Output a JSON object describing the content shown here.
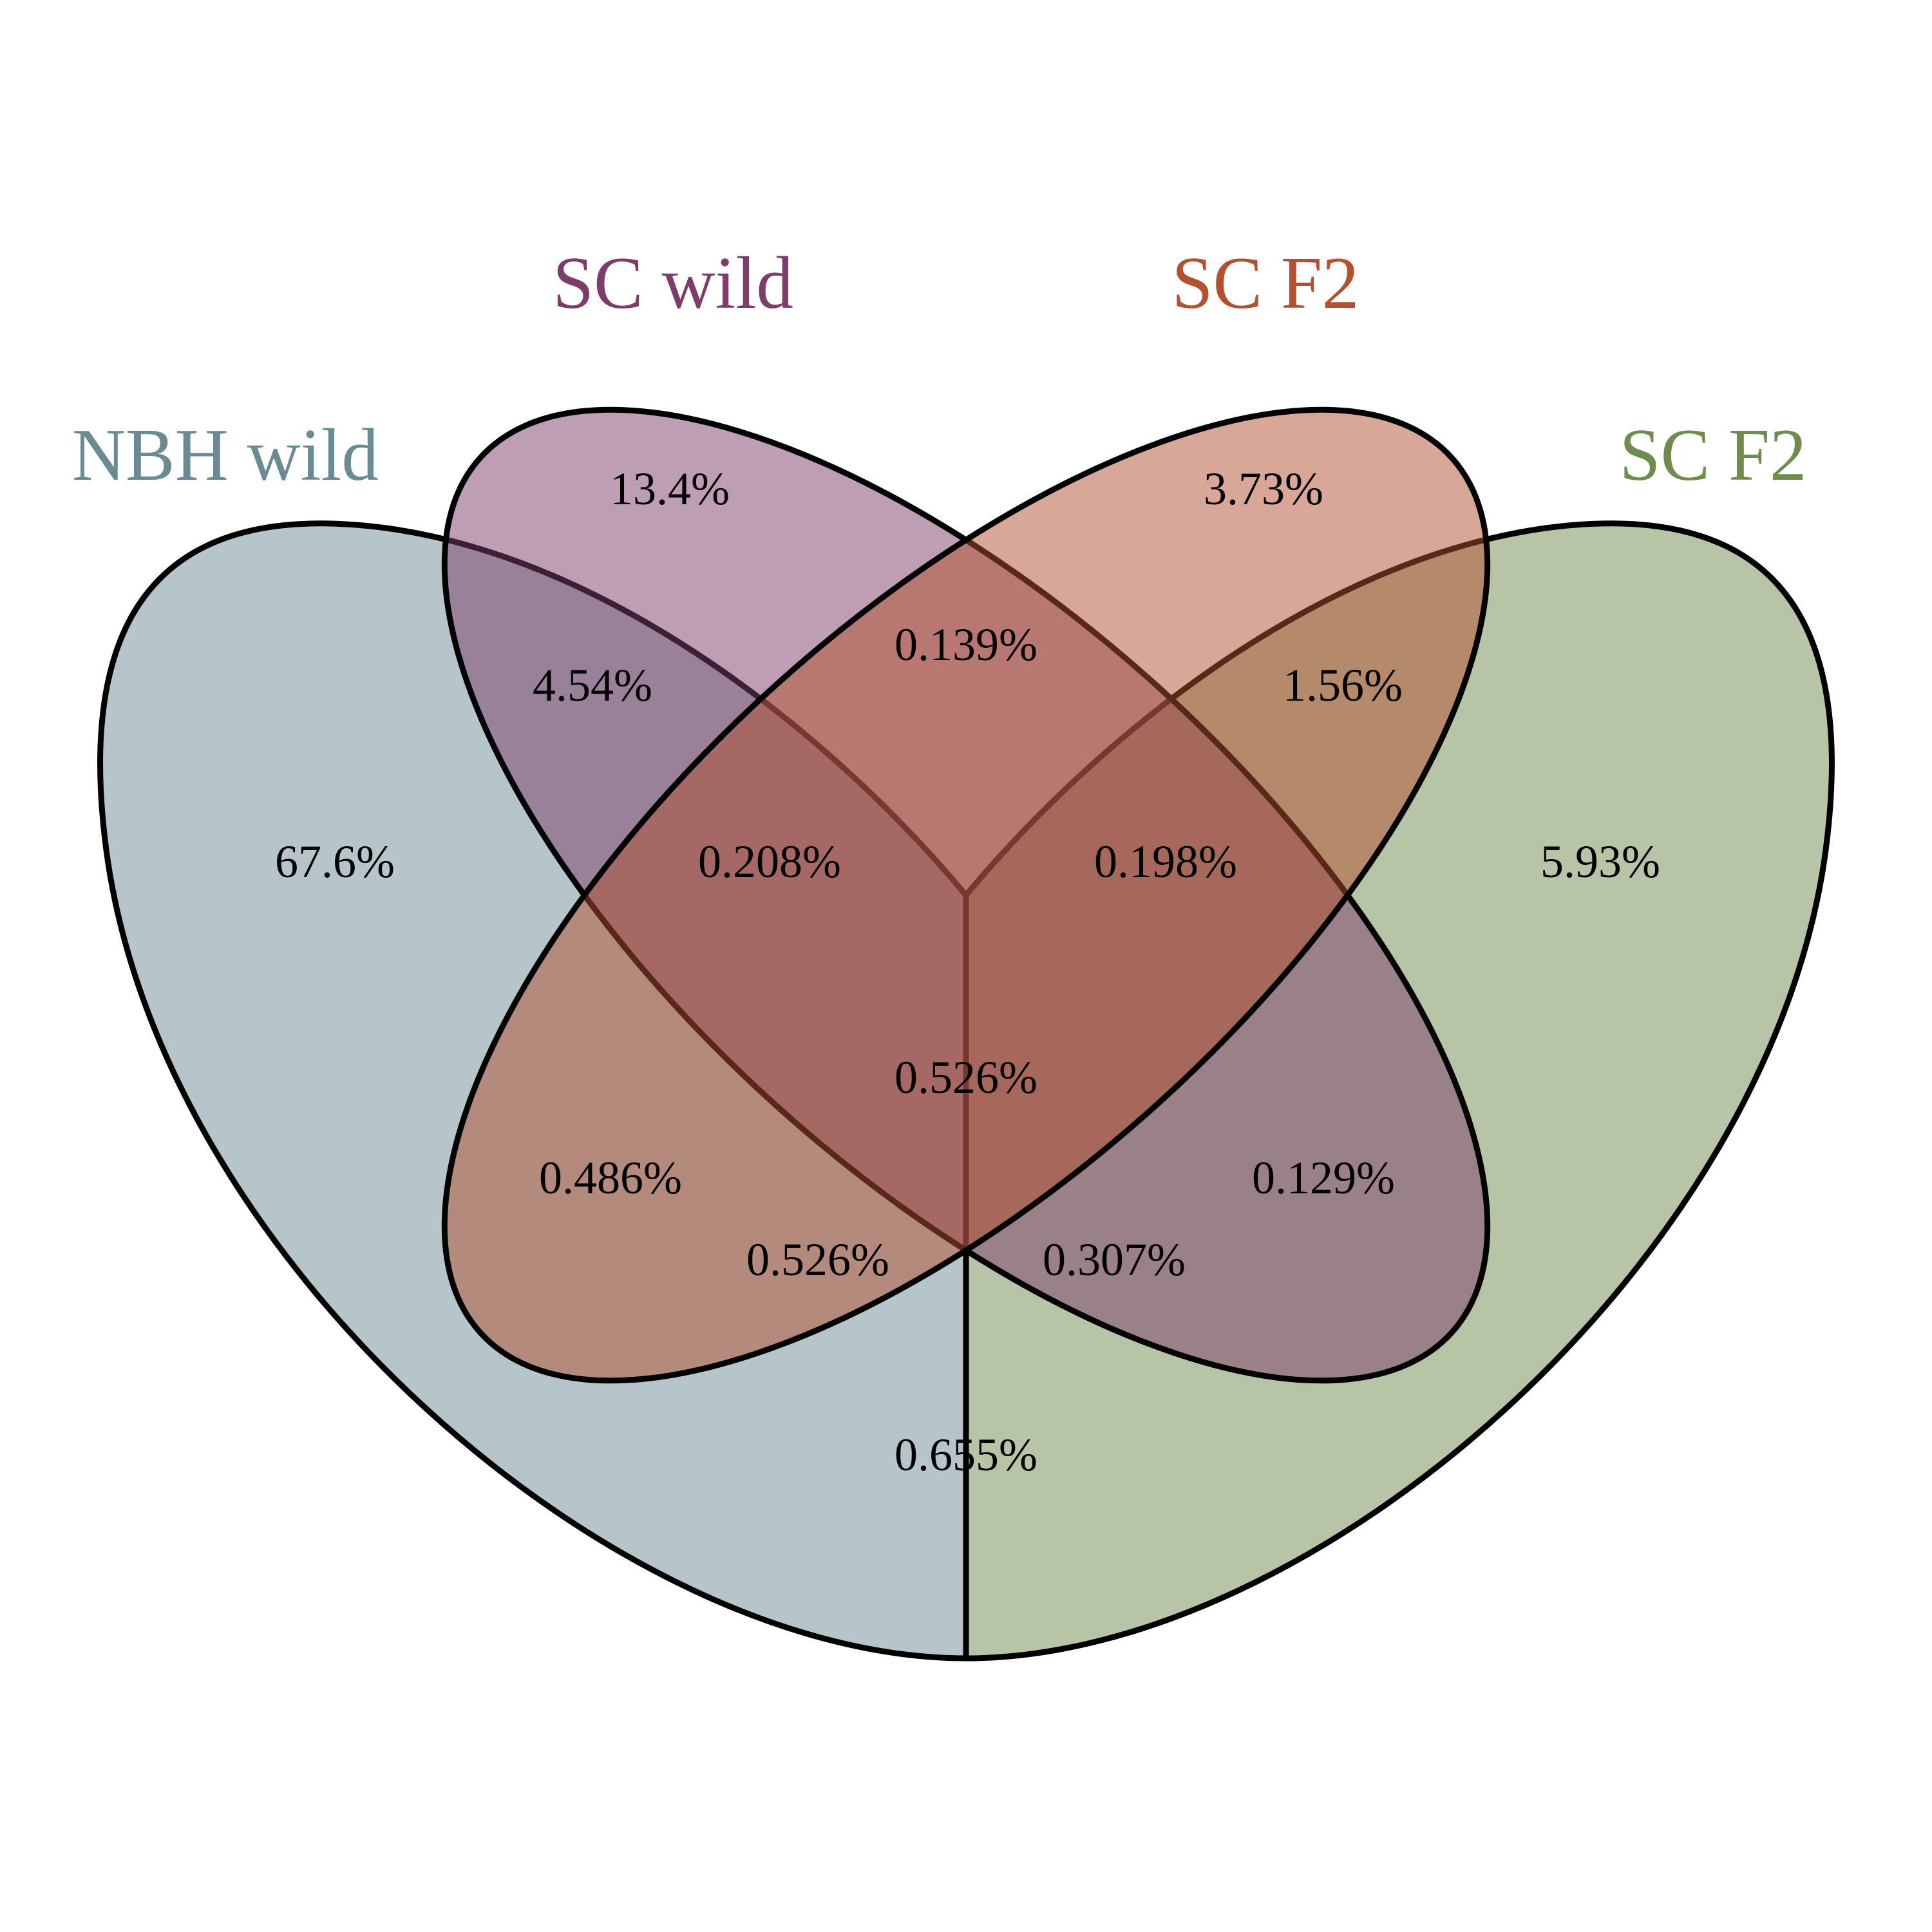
{
  "sets": [
    {
      "key": "nbh_wild",
      "label": "NBH wild",
      "color": "#6b8b93"
    },
    {
      "key": "sc_wild",
      "label": "SC wild",
      "color": "#7e3d69"
    },
    {
      "key": "sc_f2_a",
      "label": "SC F2",
      "color": "#b3502f"
    },
    {
      "key": "sc_f2_b",
      "label": "SC F2",
      "color": "#6f8c4d"
    }
  ],
  "regions": [
    {
      "sets": [
        "sc_wild"
      ],
      "value": "13.4%"
    },
    {
      "sets": [
        "sc_f2_a"
      ],
      "value": "3.73%"
    },
    {
      "sets": [
        "sc_wild",
        "sc_f2_a"
      ],
      "value": "0.139%"
    },
    {
      "sets": [
        "nbh_wild",
        "sc_wild"
      ],
      "value": "4.54%"
    },
    {
      "sets": [
        "sc_f2_a",
        "sc_f2_b"
      ],
      "value": "1.56%"
    },
    {
      "sets": [
        "nbh_wild"
      ],
      "value": "67.6%"
    },
    {
      "sets": [
        "nbh_wild",
        "sc_wild",
        "sc_f2_a"
      ],
      "value": "0.208%"
    },
    {
      "sets": [
        "sc_wild",
        "sc_f2_a",
        "sc_f2_b"
      ],
      "value": "0.198%"
    },
    {
      "sets": [
        "sc_f2_b"
      ],
      "value": "5.93%"
    },
    {
      "sets": [
        "nbh_wild",
        "sc_wild",
        "sc_f2_a",
        "sc_f2_b"
      ],
      "value": "0.526%"
    },
    {
      "sets": [
        "nbh_wild",
        "sc_f2_a"
      ],
      "value": "0.486%"
    },
    {
      "sets": [
        "sc_wild",
        "sc_f2_b"
      ],
      "value": "0.129%"
    },
    {
      "sets": [
        "nbh_wild",
        "sc_f2_a",
        "sc_f2_b"
      ],
      "value": "0.526%"
    },
    {
      "sets": [
        "nbh_wild",
        "sc_wild",
        "sc_f2_b"
      ],
      "value": "0.307%"
    },
    {
      "sets": [
        "nbh_wild",
        "sc_f2_b"
      ],
      "value": "0.655%"
    }
  ]
}
